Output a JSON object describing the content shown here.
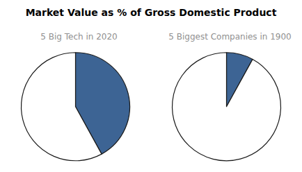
{
  "chart_data": [
    {
      "type": "pie",
      "title": "Market Value as % of Gross Domestic Product",
      "subtitle": "5 Big Tech in 2020",
      "values": [
        42,
        58
      ],
      "colors": [
        "#3d6494",
        "#ffffff"
      ]
    },
    {
      "type": "pie",
      "subtitle": "5 Biggest Companies in 1900",
      "values": [
        8,
        92
      ],
      "colors": [
        "#3d6494",
        "#ffffff"
      ]
    }
  ]
}
